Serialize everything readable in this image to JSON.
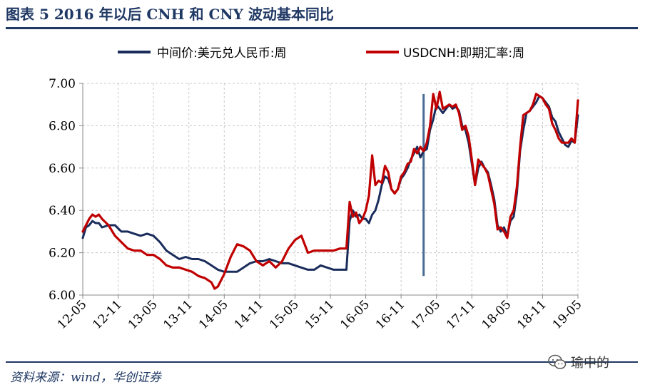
{
  "header": {
    "title": "图表 5    2016 年以后 CNH 和 CNY 波动基本同比"
  },
  "footer": {
    "source": "资料来源：wind，华创证券",
    "watermark": "瑜中的"
  },
  "colors": {
    "accent": "#1f3864",
    "cny": "#1a2c5b",
    "cnh": "#c00000",
    "marker": "#4a6c94"
  },
  "chart_data": {
    "type": "line",
    "ylim": [
      6.0,
      7.0
    ],
    "y_ticks": [
      "6.00",
      "6.20",
      "6.40",
      "6.60",
      "6.80",
      "7.00"
    ],
    "x_ticks": [
      "12-05",
      "12-11",
      "13-05",
      "13-11",
      "14-05",
      "14-11",
      "15-05",
      "15-11",
      "16-05",
      "16-11",
      "17-05",
      "17-11",
      "18-05",
      "18-11",
      "19-05"
    ],
    "grid": true,
    "legend_position": "top",
    "marker_line": {
      "x": 53.0,
      "y_range": [
        6.09,
        6.95
      ]
    },
    "series": [
      {
        "name": "中间价:美元兑人民币:周",
        "color": "#1a2c5b",
        "points": [
          [
            0,
            6.27
          ],
          [
            0.5,
            6.32
          ],
          [
            1,
            6.33
          ],
          [
            1.5,
            6.35
          ],
          [
            2,
            6.34
          ],
          [
            2.5,
            6.34
          ],
          [
            3,
            6.32
          ],
          [
            4,
            6.33
          ],
          [
            5,
            6.33
          ],
          [
            6,
            6.3
          ],
          [
            7,
            6.3
          ],
          [
            8,
            6.29
          ],
          [
            9,
            6.28
          ],
          [
            10,
            6.29
          ],
          [
            11,
            6.28
          ],
          [
            12,
            6.25
          ],
          [
            13,
            6.21
          ],
          [
            14,
            6.19
          ],
          [
            15,
            6.17
          ],
          [
            16,
            6.18
          ],
          [
            17,
            6.17
          ],
          [
            18,
            6.17
          ],
          [
            19,
            6.16
          ],
          [
            20,
            6.14
          ],
          [
            21,
            6.12
          ],
          [
            22,
            6.11
          ],
          [
            23,
            6.11
          ],
          [
            24,
            6.11
          ],
          [
            25,
            6.13
          ],
          [
            26,
            6.15
          ],
          [
            27,
            6.16
          ],
          [
            28,
            6.16
          ],
          [
            29,
            6.17
          ],
          [
            30,
            6.16
          ],
          [
            31,
            6.15
          ],
          [
            32,
            6.15
          ],
          [
            33,
            6.14
          ],
          [
            34,
            6.13
          ],
          [
            35,
            6.12
          ],
          [
            36,
            6.12
          ],
          [
            37,
            6.14
          ],
          [
            38,
            6.13
          ],
          [
            39,
            6.12
          ],
          [
            40,
            6.12
          ],
          [
            40.5,
            6.12
          ],
          [
            41,
            6.12
          ],
          [
            41.5,
            6.35
          ],
          [
            42,
            6.4
          ],
          [
            42.5,
            6.37
          ],
          [
            43,
            6.38
          ],
          [
            43.5,
            6.36
          ],
          [
            44,
            6.36
          ],
          [
            44.5,
            6.34
          ],
          [
            45,
            6.38
          ],
          [
            45.5,
            6.4
          ],
          [
            46,
            6.45
          ],
          [
            46.5,
            6.52
          ],
          [
            47,
            6.56
          ],
          [
            47.5,
            6.55
          ],
          [
            48,
            6.5
          ],
          [
            48.5,
            6.48
          ],
          [
            49,
            6.5
          ],
          [
            49.5,
            6.55
          ],
          [
            50,
            6.57
          ],
          [
            50.5,
            6.6
          ],
          [
            51,
            6.64
          ],
          [
            51.5,
            6.67
          ],
          [
            52,
            6.7
          ],
          [
            52.5,
            6.65
          ],
          [
            53,
            6.68
          ],
          [
            53.5,
            6.69
          ],
          [
            54,
            6.78
          ],
          [
            54.5,
            6.83
          ],
          [
            55,
            6.9
          ],
          [
            55.5,
            6.88
          ],
          [
            56,
            6.86
          ],
          [
            56.5,
            6.88
          ],
          [
            57,
            6.9
          ],
          [
            57.5,
            6.88
          ],
          [
            58,
            6.89
          ],
          [
            58.5,
            6.87
          ],
          [
            59,
            6.8
          ],
          [
            59.5,
            6.78
          ],
          [
            60,
            6.72
          ],
          [
            60.5,
            6.62
          ],
          [
            61,
            6.52
          ],
          [
            61.5,
            6.6
          ],
          [
            62,
            6.63
          ],
          [
            62.5,
            6.6
          ],
          [
            63,
            6.58
          ],
          [
            63.5,
            6.52
          ],
          [
            64,
            6.45
          ],
          [
            64.5,
            6.33
          ],
          [
            65,
            6.3
          ],
          [
            65.5,
            6.32
          ],
          [
            66,
            6.28
          ],
          [
            66.5,
            6.35
          ],
          [
            67,
            6.37
          ],
          [
            67.5,
            6.48
          ],
          [
            68,
            6.68
          ],
          [
            68.5,
            6.78
          ],
          [
            69,
            6.86
          ],
          [
            69.5,
            6.87
          ],
          [
            70,
            6.89
          ],
          [
            70.5,
            6.91
          ],
          [
            71,
            6.94
          ],
          [
            71.5,
            6.93
          ],
          [
            72,
            6.91
          ],
          [
            72.5,
            6.89
          ],
          [
            73,
            6.84
          ],
          [
            73.5,
            6.82
          ],
          [
            74,
            6.77
          ],
          [
            74.5,
            6.74
          ],
          [
            75,
            6.71
          ],
          [
            75.5,
            6.7
          ],
          [
            76,
            6.73
          ],
          [
            76.5,
            6.72
          ],
          [
            77,
            6.85
          ]
        ]
      },
      {
        "name": "USDCNH:即期汇率:周",
        "color": "#c00000",
        "points": [
          [
            0,
            6.3
          ],
          [
            0.5,
            6.33
          ],
          [
            1,
            6.36
          ],
          [
            1.5,
            6.38
          ],
          [
            2,
            6.37
          ],
          [
            2.5,
            6.38
          ],
          [
            3,
            6.36
          ],
          [
            4,
            6.33
          ],
          [
            5,
            6.28
          ],
          [
            6,
            6.25
          ],
          [
            7,
            6.22
          ],
          [
            8,
            6.21
          ],
          [
            9,
            6.21
          ],
          [
            10,
            6.19
          ],
          [
            11,
            6.19
          ],
          [
            12,
            6.17
          ],
          [
            13,
            6.14
          ],
          [
            14,
            6.13
          ],
          [
            15,
            6.13
          ],
          [
            16,
            6.12
          ],
          [
            17,
            6.11
          ],
          [
            18,
            6.09
          ],
          [
            19,
            6.08
          ],
          [
            20,
            6.06
          ],
          [
            20.5,
            6.03
          ],
          [
            21,
            6.04
          ],
          [
            22,
            6.1
          ],
          [
            23,
            6.18
          ],
          [
            24,
            6.24
          ],
          [
            25,
            6.23
          ],
          [
            26,
            6.21
          ],
          [
            27,
            6.16
          ],
          [
            28,
            6.14
          ],
          [
            29,
            6.16
          ],
          [
            30,
            6.13
          ],
          [
            31,
            6.16
          ],
          [
            32,
            6.22
          ],
          [
            33,
            6.26
          ],
          [
            34,
            6.28
          ],
          [
            35,
            6.2
          ],
          [
            36,
            6.21
          ],
          [
            37,
            6.21
          ],
          [
            38,
            6.21
          ],
          [
            39,
            6.21
          ],
          [
            40,
            6.22
          ],
          [
            40.5,
            6.22
          ],
          [
            41,
            6.22
          ],
          [
            41.5,
            6.44
          ],
          [
            42,
            6.37
          ],
          [
            42.5,
            6.39
          ],
          [
            43,
            6.34
          ],
          [
            43.5,
            6.36
          ],
          [
            44,
            6.4
          ],
          [
            44.5,
            6.47
          ],
          [
            45,
            6.66
          ],
          [
            45.5,
            6.52
          ],
          [
            46,
            6.54
          ],
          [
            46.5,
            6.53
          ],
          [
            47,
            6.61
          ],
          [
            47.5,
            6.58
          ],
          [
            48,
            6.5
          ],
          [
            48.5,
            6.48
          ],
          [
            49,
            6.5
          ],
          [
            49.5,
            6.56
          ],
          [
            50,
            6.58
          ],
          [
            50.5,
            6.62
          ],
          [
            51,
            6.63
          ],
          [
            51.5,
            6.69
          ],
          [
            52,
            6.67
          ],
          [
            52.5,
            6.7
          ],
          [
            53,
            6.68
          ],
          [
            53.5,
            6.72
          ],
          [
            54,
            6.8
          ],
          [
            54.5,
            6.95
          ],
          [
            55,
            6.88
          ],
          [
            55.5,
            6.96
          ],
          [
            56,
            6.88
          ],
          [
            56.5,
            6.89
          ],
          [
            57,
            6.9
          ],
          [
            57.5,
            6.89
          ],
          [
            58,
            6.9
          ],
          [
            58.5,
            6.86
          ],
          [
            59,
            6.78
          ],
          [
            59.5,
            6.8
          ],
          [
            60,
            6.75
          ],
          [
            60.5,
            6.64
          ],
          [
            61,
            6.52
          ],
          [
            61.5,
            6.64
          ],
          [
            62,
            6.62
          ],
          [
            62.5,
            6.6
          ],
          [
            63,
            6.57
          ],
          [
            63.5,
            6.5
          ],
          [
            64,
            6.43
          ],
          [
            64.5,
            6.31
          ],
          [
            65,
            6.32
          ],
          [
            65.5,
            6.3
          ],
          [
            66,
            6.27
          ],
          [
            66.5,
            6.37
          ],
          [
            67,
            6.4
          ],
          [
            67.5,
            6.51
          ],
          [
            68,
            6.7
          ],
          [
            68.5,
            6.85
          ],
          [
            69,
            6.86
          ],
          [
            69.5,
            6.87
          ],
          [
            70,
            6.9
          ],
          [
            70.5,
            6.95
          ],
          [
            71,
            6.94
          ],
          [
            71.5,
            6.93
          ],
          [
            72,
            6.9
          ],
          [
            72.5,
            6.88
          ],
          [
            73,
            6.81
          ],
          [
            73.5,
            6.78
          ],
          [
            74,
            6.74
          ],
          [
            74.5,
            6.72
          ],
          [
            75,
            6.72
          ],
          [
            75.5,
            6.72
          ],
          [
            76,
            6.74
          ],
          [
            76.5,
            6.72
          ],
          [
            77,
            6.92
          ]
        ]
      }
    ]
  }
}
